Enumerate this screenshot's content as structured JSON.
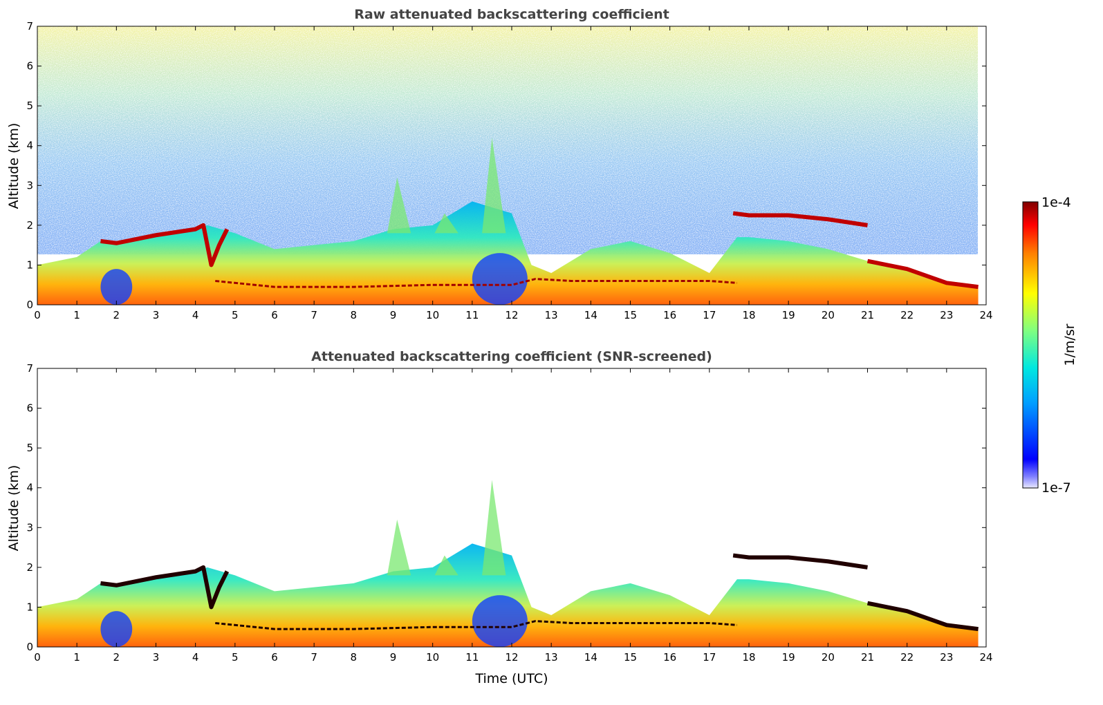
{
  "chart_data": [
    {
      "type": "heatmap",
      "title": "Raw attenuated backscattering coefficient",
      "xlabel": "",
      "ylabel": "Altitude (km)",
      "xlim": [
        0,
        24
      ],
      "ylim": [
        0,
        7
      ],
      "xticks": [
        "0",
        "1",
        "2",
        "3",
        "4",
        "5",
        "6",
        "7",
        "8",
        "9",
        "10",
        "11",
        "12",
        "13",
        "14",
        "15",
        "16",
        "17",
        "18",
        "19",
        "20",
        "21",
        "22",
        "23",
        "24"
      ],
      "yticks": [
        "0",
        "1",
        "2",
        "3",
        "4",
        "5",
        "6",
        "7"
      ],
      "noise_above_signal": true,
      "layers": [
        {
          "name": "boundary-layer-top",
          "x": [
            0,
            1,
            1.6,
            2.5,
            3,
            4,
            4.3,
            5,
            6,
            7,
            8,
            9,
            10,
            11,
            12,
            12.5,
            13,
            14,
            15,
            16,
            17,
            17.7,
            18,
            19,
            20,
            21,
            22,
            23,
            23.8
          ],
          "y": [
            1.0,
            1.2,
            1.6,
            1.6,
            1.8,
            1.9,
            2.0,
            1.8,
            1.4,
            1.5,
            1.6,
            1.9,
            2.0,
            2.6,
            2.3,
            1.0,
            0.8,
            1.4,
            1.6,
            1.3,
            0.8,
            1.7,
            1.7,
            1.6,
            1.4,
            1.1,
            0.9,
            0.6,
            0.5
          ]
        },
        {
          "name": "elevated-layer",
          "x": [
            17.6,
            18,
            19,
            20,
            21
          ],
          "y": [
            2.3,
            2.25,
            2.25,
            2.15,
            2.0
          ]
        },
        {
          "name": "cloud-base-streak",
          "x": [
            1.6,
            2,
            3,
            4,
            4.2,
            4.4,
            4.6,
            4.8
          ],
          "y": [
            1.6,
            1.55,
            1.75,
            1.9,
            2.0,
            1.0,
            1.5,
            1.9
          ]
        },
        {
          "name": "descending-layer",
          "x": [
            21,
            22,
            23,
            23.8
          ],
          "y": [
            1.1,
            0.9,
            0.55,
            0.45
          ]
        }
      ],
      "colorbar": {
        "min_label": "1e-7",
        "max_label": "1e-4",
        "label": "1/m/sr",
        "scale": "log"
      }
    },
    {
      "type": "heatmap",
      "title": "Attenuated backscattering coefficient (SNR-screened)",
      "xlabel": "Time (UTC)",
      "ylabel": "Altitude (km)",
      "xlim": [
        0,
        24
      ],
      "ylim": [
        0,
        7
      ],
      "xticks": [
        "0",
        "1",
        "2",
        "3",
        "4",
        "5",
        "6",
        "7",
        "8",
        "9",
        "10",
        "11",
        "12",
        "13",
        "14",
        "15",
        "16",
        "17",
        "18",
        "19",
        "20",
        "21",
        "22",
        "23",
        "24"
      ],
      "yticks": [
        "0",
        "1",
        "2",
        "3",
        "4",
        "5",
        "6",
        "7"
      ],
      "noise_above_signal": false
    }
  ],
  "colorbar": {
    "label": "1/m/sr",
    "min_label": "1e-7",
    "max_label": "1e-4"
  },
  "colors": {
    "low": "#0000ff",
    "high": "#800000",
    "background": "#ffffff"
  }
}
